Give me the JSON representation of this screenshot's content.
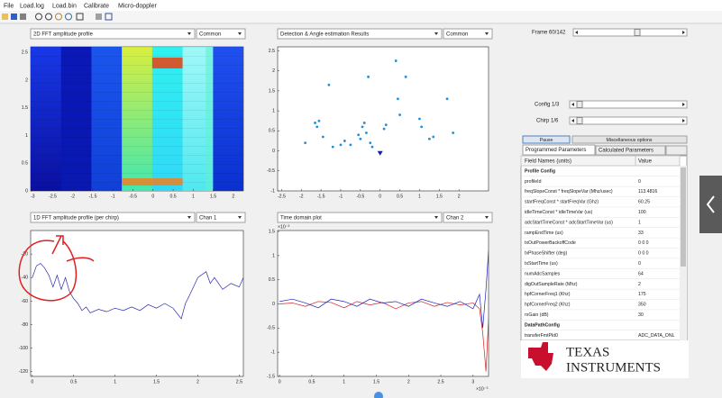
{
  "menu": [
    "File",
    "Load.log",
    "Load.bin",
    "Calibrate",
    "Micro-doppler"
  ],
  "panels": [
    {
      "type": "heatmap",
      "dropdown": "2D FFT amplitude profile",
      "selector": "Common",
      "xlim": [
        -3.05,
        2.25
      ],
      "ylim": [
        0,
        2.6
      ],
      "xticks": [
        -3,
        -2.5,
        -2,
        -1.5,
        -1,
        -0.5,
        0,
        0.5,
        1,
        1.5,
        2
      ],
      "yticks": [
        0,
        0.5,
        1,
        1.5,
        2,
        2.5
      ]
    },
    {
      "type": "scatter",
      "dropdown": "Detection & Angle estimation Results",
      "selector": "Common",
      "xlim": [
        -2.6,
        2.75
      ],
      "ylim": [
        -1,
        2.6
      ],
      "xticks": [
        -2.5,
        -2,
        -1.5,
        -1,
        -0.5,
        0,
        0.5,
        1,
        1.5,
        2
      ],
      "yticks": [
        -1,
        -0.5,
        0,
        0.5,
        1,
        1.5,
        2,
        2.5
      ],
      "x": [
        -1.9,
        -1.65,
        -1.6,
        -1.55,
        -1.45,
        -1.3,
        -1.2,
        -1.0,
        -0.9,
        -0.75,
        -0.55,
        -0.5,
        -0.45,
        -0.4,
        -0.35,
        -0.3,
        -0.25,
        -0.2,
        0.1,
        0.15,
        0.4,
        0.45,
        0.5,
        0.65,
        1.0,
        1.05,
        1.25,
        1.35,
        1.7,
        1.85
      ],
      "y": [
        0.2,
        0.7,
        0.6,
        0.75,
        0.35,
        1.65,
        0.1,
        0.15,
        0.25,
        0.15,
        0.4,
        0.3,
        0.6,
        0.7,
        0.45,
        1.85,
        0.2,
        0.1,
        0.55,
        0.65,
        2.25,
        1.3,
        0.9,
        1.85,
        0.8,
        0.6,
        0.3,
        0.35,
        1.3,
        0.45
      ],
      "target": {
        "x": 0,
        "y": -0.05
      },
      "color": "#1f8fd8"
    },
    {
      "type": "line",
      "dropdown": "1D FFT amplitude profile (per chirp)",
      "selector": "Chan 1",
      "xlim": [
        -0.02,
        2.55
      ],
      "ylim": [
        -124,
        0
      ],
      "xticks": [
        0,
        0.5,
        1,
        1.5,
        2,
        2.5
      ],
      "yticks": [
        -120,
        -100,
        -80,
        -60,
        -40,
        -20
      ],
      "x": [
        0,
        0.05,
        0.1,
        0.15,
        0.2,
        0.25,
        0.3,
        0.35,
        0.4,
        0.45,
        0.5,
        0.55,
        0.6,
        0.65,
        0.7,
        0.8,
        0.9,
        1.0,
        1.1,
        1.2,
        1.3,
        1.4,
        1.5,
        1.6,
        1.7,
        1.8,
        1.85,
        1.9,
        2.0,
        2.1,
        2.15,
        2.2,
        2.3,
        2.4,
        2.5,
        2.55
      ],
      "y": [
        -40,
        -30,
        -28,
        -32,
        -38,
        -48,
        -38,
        -50,
        -40,
        -52,
        -58,
        -62,
        -68,
        -65,
        -70,
        -67,
        -69,
        -66,
        -68,
        -65,
        -68,
        -63,
        -66,
        -62,
        -66,
        -75,
        -62,
        -55,
        -40,
        -35,
        -45,
        -40,
        -50,
        -45,
        -48,
        -40
      ],
      "color": "#2b2bb0"
    },
    {
      "type": "lines",
      "dropdown": "Time domain plot",
      "selector": "Chan 2",
      "xlim": [
        -0.03,
        3.24
      ],
      "ylim": [
        -1.5,
        1.52
      ],
      "xticks": [
        0,
        0.5,
        1,
        1.5,
        2,
        2.5,
        3
      ],
      "yticks": [
        -1.5,
        -1,
        -0.5,
        0,
        0.5,
        1,
        1.5
      ],
      "y_exponent": "×10⁻³",
      "x_exponent": "×10⁻⁵",
      "x": [
        0,
        0.2,
        0.4,
        0.6,
        0.8,
        1.0,
        1.2,
        1.4,
        1.6,
        1.8,
        2.0,
        2.2,
        2.4,
        2.6,
        2.8,
        3.0,
        3.1,
        3.15,
        3.2,
        3.24
      ],
      "series": [
        {
          "color": "#d62020",
          "values": [
            0,
            0.02,
            -0.05,
            0.05,
            0.03,
            -0.08,
            0.05,
            -0.02,
            0.03,
            -0.1,
            0.02,
            0.05,
            -0.05,
            0.03,
            -0.02,
            0.02,
            -0.1,
            -0.6,
            -1.4,
            -0.3
          ]
        },
        {
          "color": "#2020c0",
          "values": [
            0.05,
            0.1,
            0.02,
            -0.08,
            0.1,
            0.05,
            -0.05,
            0.1,
            0.02,
            0.05,
            -0.05,
            0.1,
            0.02,
            -0.05,
            0.05,
            -0.1,
            0.2,
            -0.5,
            0.3,
            1.1
          ]
        }
      ]
    }
  ],
  "right_panel": {
    "frame_label": "Frame 60/142",
    "config_label": "Config 1/3",
    "chirp_label": "Chirp 1/6",
    "pause": "Pause",
    "misc": "Miscellaneous options",
    "tabs": [
      "Programmed Parameters",
      "Calculated Parameters"
    ],
    "table": {
      "header": [
        "Field Names   (units)",
        "Value"
      ],
      "rows": [
        [
          "Profile Config",
          ""
        ],
        [
          "profileId",
          "0"
        ],
        [
          "freqSlopeConst * freqSlopeVar (Mhz/usec)",
          "113.4816"
        ],
        [
          "startFreqConst * startFreqVar (Ghz)",
          "60.25"
        ],
        [
          "idleTimeConst * idleTimeVar (us)",
          "100"
        ],
        [
          "adcStartTimeConst * adcStartTimeVar (us)",
          "1"
        ],
        [
          "rampEndTime (us)",
          "33"
        ],
        [
          "txOutPowerBackoffCode",
          "0 0 0"
        ],
        [
          "txPhaseShifter (deg)",
          "0 0 0"
        ],
        [
          "txStartTime (us)",
          "0"
        ],
        [
          "numAdcSamples",
          "64"
        ],
        [
          "digOutSampleRate (Mhz)",
          "2"
        ],
        [
          "hpfCornerFreq1 (Khz)",
          "175"
        ],
        [
          "hpfCornerFreq2 (Khz)",
          "350"
        ],
        [
          "rxGain (dB)",
          "30"
        ],
        [
          "DataPathConfig",
          ""
        ],
        [
          "transferFmtPkt0",
          "ADC_DATA_ONL"
        ]
      ]
    },
    "logo": [
      "TEXAS",
      "INSTRUMENTS"
    ]
  }
}
